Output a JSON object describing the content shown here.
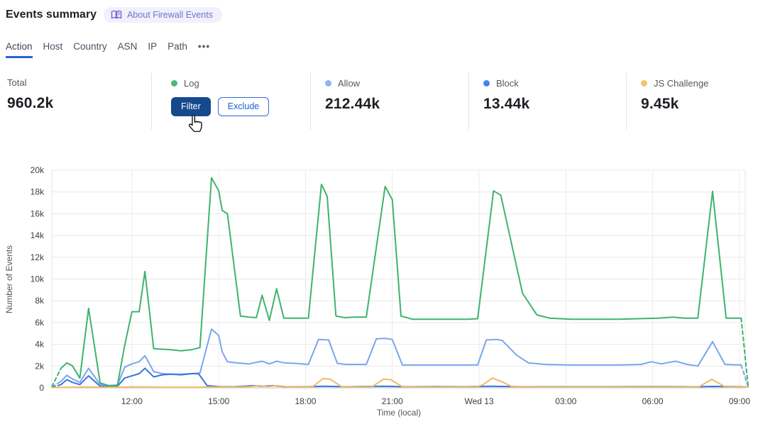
{
  "header": {
    "title": "Events summary",
    "about_badge": "About Firewall Events"
  },
  "tabs": {
    "items": [
      {
        "label": "Action",
        "active": true
      },
      {
        "label": "Host",
        "active": false
      },
      {
        "label": "Country",
        "active": false
      },
      {
        "label": "ASN",
        "active": false
      },
      {
        "label": "IP",
        "active": false
      },
      {
        "label": "Path",
        "active": false
      }
    ],
    "more": "•••"
  },
  "stats": {
    "total": {
      "label": "Total",
      "value": "960.2k"
    },
    "cards": [
      {
        "label": "Log",
        "dot": "#4cb67d",
        "filter_label": "Filter",
        "exclude_label": "Exclude"
      },
      {
        "label": "Allow",
        "dot": "#8fb5f4",
        "value": "212.44k"
      },
      {
        "label": "Block",
        "dot": "#4285f0",
        "value": "13.44k"
      },
      {
        "label": "JS Challenge",
        "dot": "#f5c26d",
        "value": "9.45k"
      }
    ]
  },
  "chart_data": {
    "type": "line",
    "title": "",
    "xlabel": "Time (local)",
    "ylabel": "Number of Events",
    "x_unit": "decimal hours since Tue 00:00 local (values >24 are Wed 13)",
    "xlim": [
      9.23,
      33.3
    ],
    "ylim": [
      0,
      20000
    ],
    "grid": true,
    "legend_position": "stats-row-above",
    "x_ticks": [
      [
        12,
        "12:00"
      ],
      [
        15,
        "15:00"
      ],
      [
        18,
        "18:00"
      ],
      [
        21,
        "21:00"
      ],
      [
        24,
        "Wed 13"
      ],
      [
        27,
        "03:00"
      ],
      [
        30,
        "06:00"
      ],
      [
        33,
        "09:00"
      ]
    ],
    "y_ticks": [
      [
        0,
        "0"
      ],
      [
        2000,
        "2k"
      ],
      [
        4000,
        "4k"
      ],
      [
        6000,
        "6k"
      ],
      [
        8000,
        "8k"
      ],
      [
        10000,
        "10k"
      ],
      [
        12000,
        "12k"
      ],
      [
        14000,
        "14k"
      ],
      [
        16000,
        "16k"
      ],
      [
        18000,
        "18k"
      ],
      [
        20000,
        "20k"
      ]
    ],
    "series": [
      {
        "name": "Log",
        "color": "#3eb36e",
        "lead_dash": [
          [
            9.23,
            100
          ],
          [
            9.55,
            1800
          ]
        ],
        "points": [
          [
            9.55,
            1800
          ],
          [
            9.75,
            2300
          ],
          [
            9.95,
            2000
          ],
          [
            10.2,
            900
          ],
          [
            10.5,
            7300
          ],
          [
            10.9,
            450
          ],
          [
            11.2,
            200
          ],
          [
            11.5,
            250
          ],
          [
            11.75,
            3900
          ],
          [
            12.0,
            7000
          ],
          [
            12.25,
            7000
          ],
          [
            12.45,
            10700
          ],
          [
            12.75,
            3600
          ],
          [
            13.05,
            3550
          ],
          [
            13.35,
            3500
          ],
          [
            13.7,
            3400
          ],
          [
            14.05,
            3500
          ],
          [
            14.35,
            3700
          ],
          [
            14.75,
            19300
          ],
          [
            15.0,
            18100
          ],
          [
            15.12,
            16300
          ],
          [
            15.3,
            16000
          ],
          [
            15.75,
            6600
          ],
          [
            16.05,
            6500
          ],
          [
            16.3,
            6450
          ],
          [
            16.5,
            8500
          ],
          [
            16.75,
            6200
          ],
          [
            17.0,
            9100
          ],
          [
            17.25,
            6400
          ],
          [
            17.65,
            6400
          ],
          [
            18.1,
            6400
          ],
          [
            18.55,
            18700
          ],
          [
            18.75,
            17600
          ],
          [
            19.05,
            6600
          ],
          [
            19.35,
            6450
          ],
          [
            19.7,
            6500
          ],
          [
            20.1,
            6500
          ],
          [
            20.75,
            18500
          ],
          [
            21.0,
            17300
          ],
          [
            21.3,
            6600
          ],
          [
            21.7,
            6300
          ],
          [
            22.3,
            6300
          ],
          [
            23.0,
            6300
          ],
          [
            23.6,
            6300
          ],
          [
            23.95,
            6350
          ],
          [
            24.5,
            18100
          ],
          [
            24.75,
            17700
          ],
          [
            25.5,
            8700
          ],
          [
            26.0,
            6700
          ],
          [
            26.45,
            6400
          ],
          [
            27.2,
            6300
          ],
          [
            28.0,
            6300
          ],
          [
            28.8,
            6300
          ],
          [
            29.5,
            6350
          ],
          [
            30.2,
            6400
          ],
          [
            30.7,
            6500
          ],
          [
            31.1,
            6400
          ],
          [
            31.56,
            6400
          ],
          [
            32.07,
            18050
          ],
          [
            32.54,
            6400
          ],
          [
            33.06,
            6400
          ]
        ],
        "tail_dash": [
          [
            33.06,
            6400
          ],
          [
            33.3,
            150
          ]
        ]
      },
      {
        "name": "Allow",
        "color": "#7aa5ee",
        "lead_dash": [
          [
            9.23,
            80
          ],
          [
            9.55,
            600
          ]
        ],
        "points": [
          [
            9.55,
            600
          ],
          [
            9.75,
            1150
          ],
          [
            9.95,
            800
          ],
          [
            10.2,
            500
          ],
          [
            10.5,
            1800
          ],
          [
            10.9,
            300
          ],
          [
            11.2,
            200
          ],
          [
            11.5,
            250
          ],
          [
            11.75,
            1900
          ],
          [
            12.0,
            2200
          ],
          [
            12.25,
            2400
          ],
          [
            12.45,
            2950
          ],
          [
            12.75,
            1500
          ],
          [
            13.05,
            1300
          ],
          [
            13.35,
            1250
          ],
          [
            13.7,
            1250
          ],
          [
            14.05,
            1300
          ],
          [
            14.35,
            1350
          ],
          [
            14.75,
            5400
          ],
          [
            15.0,
            4800
          ],
          [
            15.12,
            3300
          ],
          [
            15.3,
            2400
          ],
          [
            15.6,
            2300
          ],
          [
            16.05,
            2200
          ],
          [
            16.5,
            2450
          ],
          [
            16.75,
            2200
          ],
          [
            17.0,
            2450
          ],
          [
            17.25,
            2300
          ],
          [
            17.65,
            2250
          ],
          [
            18.1,
            2150
          ],
          [
            18.45,
            4450
          ],
          [
            18.8,
            4400
          ],
          [
            19.1,
            2250
          ],
          [
            19.4,
            2150
          ],
          [
            20.1,
            2150
          ],
          [
            20.45,
            4500
          ],
          [
            20.75,
            4550
          ],
          [
            21.0,
            4450
          ],
          [
            21.35,
            2100
          ],
          [
            22.0,
            2100
          ],
          [
            23.0,
            2100
          ],
          [
            23.95,
            2100
          ],
          [
            24.25,
            4400
          ],
          [
            24.6,
            4450
          ],
          [
            24.8,
            4350
          ],
          [
            25.3,
            3000
          ],
          [
            25.7,
            2300
          ],
          [
            26.3,
            2150
          ],
          [
            27.2,
            2100
          ],
          [
            28.0,
            2100
          ],
          [
            28.8,
            2100
          ],
          [
            29.6,
            2150
          ],
          [
            29.95,
            2400
          ],
          [
            30.3,
            2200
          ],
          [
            30.8,
            2450
          ],
          [
            31.2,
            2150
          ],
          [
            31.56,
            2000
          ],
          [
            32.07,
            4250
          ],
          [
            32.5,
            2150
          ],
          [
            33.06,
            2100
          ]
        ],
        "tail_dash": [
          [
            33.06,
            2100
          ],
          [
            33.3,
            100
          ]
        ]
      },
      {
        "name": "Block",
        "color": "#3577de",
        "lead_dash": [
          [
            9.23,
            50
          ],
          [
            9.55,
            300
          ]
        ],
        "points": [
          [
            9.55,
            300
          ],
          [
            9.75,
            750
          ],
          [
            9.95,
            500
          ],
          [
            10.2,
            300
          ],
          [
            10.5,
            1100
          ],
          [
            10.9,
            150
          ],
          [
            11.2,
            100
          ],
          [
            11.5,
            150
          ],
          [
            11.75,
            900
          ],
          [
            12.0,
            1100
          ],
          [
            12.25,
            1300
          ],
          [
            12.45,
            1800
          ],
          [
            12.75,
            1000
          ],
          [
            13.05,
            1200
          ],
          [
            13.35,
            1250
          ],
          [
            13.7,
            1200
          ],
          [
            14.05,
            1300
          ],
          [
            14.3,
            1300
          ],
          [
            14.6,
            200
          ],
          [
            15.0,
            120
          ],
          [
            15.5,
            100
          ],
          [
            16.2,
            200
          ],
          [
            16.5,
            150
          ],
          [
            16.9,
            200
          ],
          [
            17.3,
            100
          ],
          [
            18.0,
            100
          ],
          [
            18.6,
            150
          ],
          [
            19.5,
            100
          ],
          [
            20.7,
            150
          ],
          [
            21.5,
            100
          ],
          [
            22.5,
            120
          ],
          [
            23.5,
            100
          ],
          [
            24.4,
            150
          ],
          [
            25.5,
            100
          ],
          [
            27.0,
            100
          ],
          [
            28.5,
            100
          ],
          [
            30.0,
            120
          ],
          [
            31.5,
            100
          ],
          [
            32.1,
            130
          ],
          [
            33.06,
            100
          ],
          [
            33.3,
            60
          ]
        ],
        "tail_dash": null
      },
      {
        "name": "JS Challenge",
        "color": "#f0bb67",
        "lead_dash": null,
        "points": [
          [
            9.23,
            30
          ],
          [
            10.0,
            60
          ],
          [
            10.5,
            80
          ],
          [
            11.0,
            50
          ],
          [
            11.5,
            60
          ],
          [
            12.0,
            80
          ],
          [
            12.5,
            80
          ],
          [
            13.0,
            60
          ],
          [
            13.6,
            60
          ],
          [
            14.2,
            60
          ],
          [
            14.75,
            80
          ],
          [
            15.5,
            70
          ],
          [
            16.1,
            120
          ],
          [
            16.4,
            200
          ],
          [
            16.7,
            120
          ],
          [
            17.0,
            200
          ],
          [
            17.35,
            100
          ],
          [
            17.8,
            70
          ],
          [
            18.25,
            100
          ],
          [
            18.6,
            850
          ],
          [
            18.85,
            800
          ],
          [
            19.25,
            100
          ],
          [
            19.8,
            70
          ],
          [
            20.3,
            100
          ],
          [
            20.7,
            800
          ],
          [
            20.95,
            750
          ],
          [
            21.35,
            90
          ],
          [
            22.0,
            70
          ],
          [
            23.0,
            70
          ],
          [
            23.9,
            80
          ],
          [
            24.15,
            300
          ],
          [
            24.45,
            900
          ],
          [
            24.75,
            600
          ],
          [
            25.15,
            100
          ],
          [
            26.0,
            70
          ],
          [
            27.0,
            70
          ],
          [
            28.0,
            70
          ],
          [
            29.0,
            70
          ],
          [
            30.0,
            80
          ],
          [
            31.0,
            70
          ],
          [
            31.6,
            100
          ],
          [
            32.05,
            780
          ],
          [
            32.5,
            90
          ],
          [
            33.06,
            70
          ],
          [
            33.3,
            60
          ]
        ],
        "tail_dash": null
      }
    ]
  }
}
